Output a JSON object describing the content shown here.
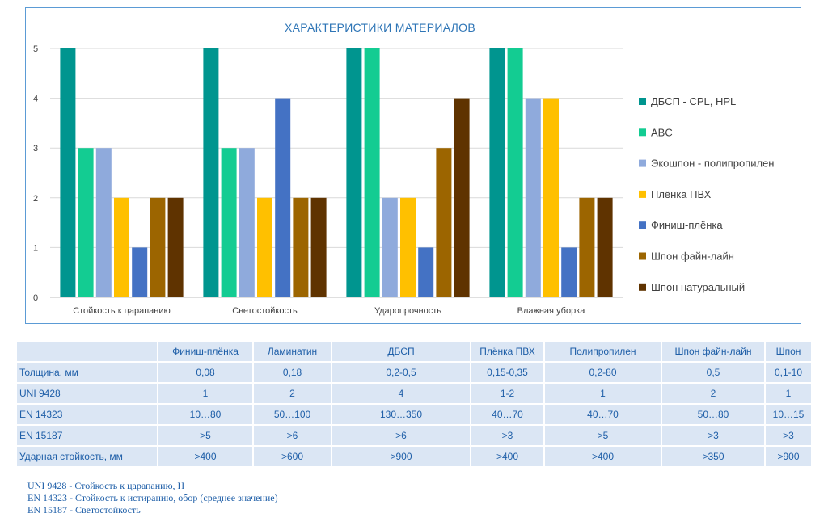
{
  "chart_data": {
    "type": "bar",
    "title": "ХАРАКТЕРИСТИКИ МАТЕРИАЛОВ",
    "categories": [
      "Стойкость к царапанию",
      "Светостойкость",
      "Ударопрочность",
      "Влажная уборка"
    ],
    "ylim": [
      0,
      5
    ],
    "yticks": [
      0,
      1,
      2,
      3,
      4,
      5
    ],
    "grid": true,
    "legend_position": "right",
    "series": [
      {
        "name": "ДБСП - CPL, HPL",
        "color": "#00958f",
        "values": [
          5,
          5,
          5,
          5
        ]
      },
      {
        "name": "ABC",
        "color": "#13cc92",
        "values": [
          3,
          3,
          5,
          5
        ]
      },
      {
        "name": "Экошпон - полипропилен",
        "color": "#8faadc",
        "values": [
          3,
          3,
          2,
          4
        ]
      },
      {
        "name": "Плёнка ПВХ",
        "color": "#ffc000",
        "values": [
          2,
          2,
          2,
          4
        ]
      },
      {
        "name": "Финиш-плёнка",
        "color": "#4472c4",
        "values": [
          1,
          4,
          1,
          1
        ]
      },
      {
        "name": "Шпон файн-лайн",
        "color": "#9c6500",
        "values": [
          2,
          2,
          3,
          2
        ]
      },
      {
        "name": "Шпон натуральный",
        "color": "#5f3300",
        "values": [
          2,
          2,
          4,
          2
        ]
      }
    ]
  },
  "table": {
    "headers": [
      "Финиш-плёнка",
      "Ламинатин",
      "ДБСП",
      "Плёнка ПВХ",
      "Полипропилен",
      "Шпон файн-лайн",
      "Шпон"
    ],
    "rows": [
      {
        "label": "Толщина, мм",
        "cells": [
          "0,08",
          "0,18",
          "0,2-0,5",
          "0,15-0,35",
          "0,2-80",
          "0,5",
          "0,1-10"
        ]
      },
      {
        "label": "UNI 9428",
        "cells": [
          "1",
          "2",
          "4",
          "1-2",
          "1",
          "2",
          "1"
        ]
      },
      {
        "label": "EN 14323",
        "cells": [
          "10…80",
          "50…100",
          "130…350",
          "40…70",
          "40…70",
          "50…80",
          "10…15"
        ]
      },
      {
        "label": "EN 15187",
        "cells": [
          ">5",
          ">6",
          ">6",
          ">3",
          ">5",
          ">3",
          ">3"
        ]
      },
      {
        "label": "Ударная стойкость, мм",
        "cells": [
          ">400",
          ">600",
          ">900",
          ">400",
          ">400",
          ">350",
          ">900"
        ]
      }
    ]
  },
  "footnotes": [
    "UNI 9428 - Стойкость к царапанию, Н",
    "EN 14323 - Стойкость к истиранию, обор (среднее значение)",
    "EN 15187 - Светостойкость"
  ]
}
